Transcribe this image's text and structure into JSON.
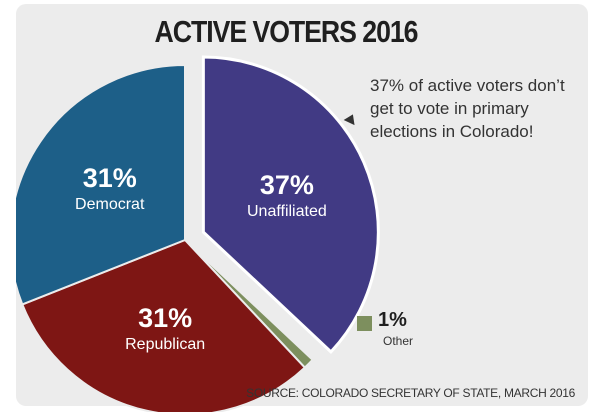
{
  "chart_data": {
    "type": "pie",
    "title": "ACTIVE VOTERS 2016",
    "slices": [
      {
        "label": "Unaffiliated",
        "value": 37,
        "display": "37%",
        "color": "#413a84"
      },
      {
        "label": "Other",
        "value": 1,
        "display": "1%",
        "color": "#7d8f5e"
      },
      {
        "label": "Republican",
        "value": 31,
        "display": "31%",
        "color": "#7e1614"
      },
      {
        "label": "Democrat",
        "value": 31,
        "display": "31%",
        "color": "#1d5f88"
      }
    ],
    "annotation": "37% of active voters don’t get to vote in primary elections in Colorado!",
    "source": "SOURCE: COLORADO SECRETARY OF STATE, MARCH 2016"
  }
}
